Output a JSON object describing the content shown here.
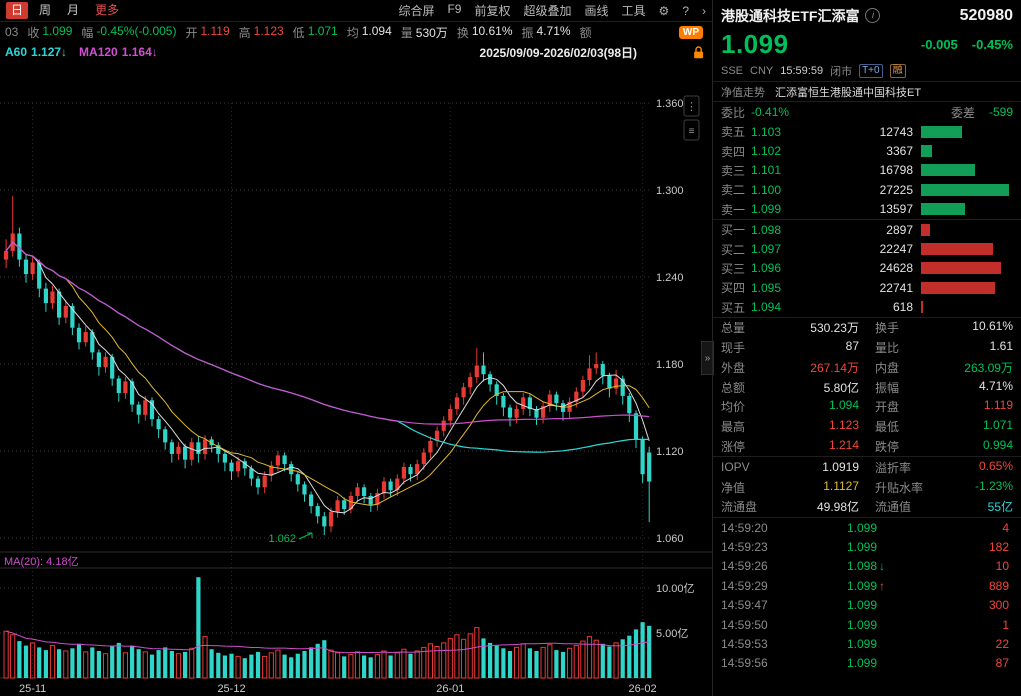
{
  "icons": {
    "gear": "⚙",
    "help": "?",
    "chevron": "›",
    "collapse": "»",
    "info": "i"
  },
  "toolbar": {
    "tabs": [
      {
        "label": "日",
        "active": true,
        "accent": false
      },
      {
        "label": "周",
        "active": false,
        "accent": false
      },
      {
        "label": "月",
        "active": false,
        "accent": false
      },
      {
        "label": "更多",
        "active": false,
        "accent": true
      }
    ],
    "menu_items": [
      "综合屏",
      "F9",
      "前复权",
      "超级叠加",
      "画线",
      "工具"
    ]
  },
  "info_bar": {
    "prefix": "03",
    "fields": [
      {
        "label": "收",
        "value": "1.099",
        "color": "green"
      },
      {
        "label": "幅",
        "value": "-0.45%(-0.005)",
        "color": "green"
      },
      {
        "label": "开",
        "value": "1.119",
        "color": "red"
      },
      {
        "label": "高",
        "value": "1.123",
        "color": "red"
      },
      {
        "label": "低",
        "value": "1.071",
        "color": "green"
      },
      {
        "label": "均",
        "value": "1.094",
        "color": "white"
      },
      {
        "label": "量",
        "value": "530万",
        "color": "white"
      },
      {
        "label": "换",
        "value": "10.61%",
        "color": "white"
      },
      {
        "label": "振",
        "value": "4.71%",
        "color": "white"
      },
      {
        "label": "额",
        "value": "",
        "color": "white"
      }
    ],
    "wp_badge": "WP"
  },
  "ma_bar": {
    "ma60_label": "A60",
    "ma60_value": "1.127↓",
    "ma120_label": "MA120",
    "ma120_value": "1.164↓",
    "date_range": "2025/09/09-2026/02/03(98日)"
  },
  "chart": {
    "y_labels": [
      "1.360",
      "1.300",
      "1.240",
      "1.180",
      "1.120",
      "1.060"
    ],
    "y_values": [
      1.36,
      1.3,
      1.24,
      1.18,
      1.12,
      1.06
    ],
    "low_annotation": "1.062",
    "vol_ma_label": "MA(20): 4.18亿",
    "vol_labels": [
      {
        "text": "10.00亿",
        "value": 10
      },
      {
        "text": "5.00亿",
        "value": 5
      }
    ],
    "x_labels": [
      {
        "text": "25-11",
        "index": 4
      },
      {
        "text": "25-12",
        "index": 34
      },
      {
        "text": "26-01",
        "index": 67
      },
      {
        "text": "26-02",
        "index": 96
      }
    ]
  },
  "chart_data": {
    "type": "candlestick",
    "title": "港股通科技ETF汇添富 520980 日K",
    "note": "each candle: [open, high, low, close, volume_yi]",
    "price_axis_range": [
      1.06,
      1.36
    ],
    "volume_axis_range": [
      0,
      10
    ],
    "lowest_marked_price": 1.062,
    "candles": [
      [
        1.252,
        1.266,
        1.246,
        1.258,
        5.2
      ],
      [
        1.258,
        1.296,
        1.254,
        1.27,
        4.8
      ],
      [
        1.27,
        1.274,
        1.247,
        1.252,
        4.1
      ],
      [
        1.252,
        1.256,
        1.236,
        1.242,
        3.6
      ],
      [
        1.242,
        1.254,
        1.238,
        1.25,
        3.9
      ],
      [
        1.25,
        1.252,
        1.226,
        1.232,
        3.4
      ],
      [
        1.232,
        1.236,
        1.216,
        1.222,
        3.1
      ],
      [
        1.222,
        1.234,
        1.218,
        1.23,
        3.6
      ],
      [
        1.23,
        1.232,
        1.207,
        1.212,
        3.2
      ],
      [
        1.212,
        1.224,
        1.208,
        1.22,
        3.0
      ],
      [
        1.22,
        1.222,
        1.2,
        1.205,
        3.3
      ],
      [
        1.205,
        1.208,
        1.19,
        1.195,
        3.8
      ],
      [
        1.195,
        1.206,
        1.192,
        1.202,
        2.9
      ],
      [
        1.202,
        1.204,
        1.183,
        1.188,
        3.4
      ],
      [
        1.188,
        1.19,
        1.172,
        1.178,
        3.0
      ],
      [
        1.178,
        1.188,
        1.174,
        1.185,
        2.7
      ],
      [
        1.185,
        1.187,
        1.165,
        1.17,
        3.5
      ],
      [
        1.17,
        1.172,
        1.154,
        1.16,
        3.9
      ],
      [
        1.16,
        1.171,
        1.156,
        1.168,
        2.8
      ],
      [
        1.168,
        1.17,
        1.147,
        1.152,
        3.6
      ],
      [
        1.152,
        1.154,
        1.139,
        1.145,
        3.2
      ],
      [
        1.145,
        1.158,
        1.141,
        1.155,
        2.9
      ],
      [
        1.155,
        1.157,
        1.137,
        1.142,
        2.6
      ],
      [
        1.142,
        1.144,
        1.129,
        1.135,
        3.1
      ],
      [
        1.135,
        1.137,
        1.121,
        1.126,
        3.4
      ],
      [
        1.126,
        1.128,
        1.112,
        1.118,
        3.0
      ],
      [
        1.118,
        1.126,
        1.114,
        1.123,
        2.7
      ],
      [
        1.123,
        1.125,
        1.108,
        1.114,
        2.9
      ],
      [
        1.114,
        1.129,
        1.11,
        1.126,
        3.3
      ],
      [
        1.126,
        1.13,
        1.112,
        1.118,
        11.2
      ],
      [
        1.118,
        1.131,
        1.114,
        1.128,
        4.6
      ],
      [
        1.128,
        1.13,
        1.119,
        1.124,
        3.2
      ],
      [
        1.124,
        1.126,
        1.112,
        1.118,
        2.8
      ],
      [
        1.118,
        1.12,
        1.106,
        1.112,
        2.5
      ],
      [
        1.112,
        1.114,
        1.1,
        1.106,
        2.7
      ],
      [
        1.106,
        1.116,
        1.102,
        1.113,
        2.4
      ],
      [
        1.113,
        1.115,
        1.103,
        1.108,
        2.2
      ],
      [
        1.108,
        1.11,
        1.096,
        1.101,
        2.6
      ],
      [
        1.101,
        1.103,
        1.09,
        1.095,
        2.9
      ],
      [
        1.095,
        1.106,
        1.091,
        1.103,
        2.4
      ],
      [
        1.103,
        1.113,
        1.099,
        1.11,
        2.8
      ],
      [
        1.11,
        1.12,
        1.106,
        1.117,
        3.1
      ],
      [
        1.117,
        1.119,
        1.106,
        1.111,
        2.6
      ],
      [
        1.111,
        1.113,
        1.099,
        1.104,
        2.3
      ],
      [
        1.104,
        1.106,
        1.092,
        1.097,
        2.7
      ],
      [
        1.097,
        1.099,
        1.085,
        1.09,
        3.0
      ],
      [
        1.09,
        1.092,
        1.077,
        1.082,
        3.4
      ],
      [
        1.082,
        1.084,
        1.07,
        1.075,
        3.8
      ],
      [
        1.075,
        1.078,
        1.062,
        1.068,
        4.2
      ],
      [
        1.068,
        1.081,
        1.064,
        1.078,
        3.1
      ],
      [
        1.078,
        1.089,
        1.074,
        1.086,
        2.8
      ],
      [
        1.086,
        1.088,
        1.076,
        1.08,
        2.4
      ],
      [
        1.08,
        1.092,
        1.077,
        1.089,
        2.6
      ],
      [
        1.089,
        1.098,
        1.085,
        1.095,
        2.9
      ],
      [
        1.095,
        1.097,
        1.084,
        1.089,
        2.5
      ],
      [
        1.089,
        1.091,
        1.078,
        1.083,
        2.3
      ],
      [
        1.083,
        1.094,
        1.079,
        1.091,
        2.6
      ],
      [
        1.091,
        1.102,
        1.087,
        1.099,
        3.0
      ],
      [
        1.099,
        1.101,
        1.088,
        1.093,
        2.5
      ],
      [
        1.093,
        1.104,
        1.089,
        1.101,
        2.8
      ],
      [
        1.101,
        1.112,
        1.097,
        1.109,
        3.2
      ],
      [
        1.109,
        1.111,
        1.099,
        1.104,
        2.7
      ],
      [
        1.104,
        1.114,
        1.1,
        1.111,
        3.0
      ],
      [
        1.111,
        1.122,
        1.107,
        1.119,
        3.4
      ],
      [
        1.119,
        1.13,
        1.115,
        1.127,
        3.8
      ],
      [
        1.127,
        1.137,
        1.123,
        1.134,
        3.5
      ],
      [
        1.134,
        1.144,
        1.13,
        1.141,
        3.9
      ],
      [
        1.141,
        1.152,
        1.137,
        1.149,
        4.4
      ],
      [
        1.149,
        1.16,
        1.145,
        1.157,
        4.8
      ],
      [
        1.157,
        1.167,
        1.152,
        1.164,
        4.3
      ],
      [
        1.164,
        1.174,
        1.159,
        1.171,
        4.9
      ],
      [
        1.171,
        1.191,
        1.167,
        1.179,
        5.6
      ],
      [
        1.179,
        1.188,
        1.168,
        1.173,
        4.4
      ],
      [
        1.173,
        1.175,
        1.161,
        1.166,
        3.9
      ],
      [
        1.166,
        1.168,
        1.152,
        1.158,
        3.6
      ],
      [
        1.158,
        1.16,
        1.144,
        1.15,
        3.3
      ],
      [
        1.15,
        1.152,
        1.137,
        1.143,
        3.0
      ],
      [
        1.143,
        1.152,
        1.139,
        1.149,
        3.4
      ],
      [
        1.149,
        1.16,
        1.145,
        1.157,
        3.8
      ],
      [
        1.157,
        1.159,
        1.144,
        1.149,
        3.3
      ],
      [
        1.149,
        1.151,
        1.138,
        1.143,
        3.0
      ],
      [
        1.143,
        1.154,
        1.139,
        1.151,
        3.4
      ],
      [
        1.151,
        1.162,
        1.147,
        1.159,
        3.7
      ],
      [
        1.159,
        1.161,
        1.148,
        1.153,
        3.1
      ],
      [
        1.153,
        1.155,
        1.141,
        1.147,
        2.9
      ],
      [
        1.147,
        1.157,
        1.143,
        1.154,
        3.3
      ],
      [
        1.154,
        1.164,
        1.15,
        1.161,
        3.6
      ],
      [
        1.161,
        1.172,
        1.157,
        1.169,
        4.1
      ],
      [
        1.169,
        1.186,
        1.165,
        1.177,
        4.6
      ],
      [
        1.177,
        1.188,
        1.173,
        1.18,
        4.2
      ],
      [
        1.18,
        1.182,
        1.166,
        1.172,
        3.8
      ],
      [
        1.172,
        1.174,
        1.157,
        1.163,
        3.5
      ],
      [
        1.163,
        1.176,
        1.159,
        1.17,
        3.9
      ],
      [
        1.17,
        1.172,
        1.152,
        1.158,
        4.3
      ],
      [
        1.158,
        1.16,
        1.14,
        1.146,
        4.7
      ],
      [
        1.146,
        1.148,
        1.122,
        1.128,
        5.4
      ],
      [
        1.128,
        1.13,
        1.098,
        1.104,
        6.2
      ],
      [
        1.119,
        1.123,
        1.071,
        1.099,
        5.8
      ]
    ]
  },
  "quote": {
    "name": "港股通科技ETF汇添富",
    "code": "520980",
    "price": "1.099",
    "change": "-0.005",
    "change_pct": "-0.45%",
    "exchange": "SSE",
    "currency": "CNY",
    "time": "15:59:59",
    "market_status": "闭市",
    "badges": [
      "T+0",
      "融"
    ],
    "nav_label": "净值走势",
    "nav_value": "汇添富恒生港股通中国科技ET",
    "weibi_label": "委比",
    "weibi": "-0.41%",
    "weicha_label": "委差",
    "weicha": "-599",
    "sells": [
      {
        "label": "卖五",
        "price": "1.103",
        "vol": 12743
      },
      {
        "label": "卖四",
        "price": "1.102",
        "vol": 3367
      },
      {
        "label": "卖三",
        "price": "1.101",
        "vol": 16798
      },
      {
        "label": "卖二",
        "price": "1.100",
        "vol": 27225
      },
      {
        "label": "卖一",
        "price": "1.099",
        "vol": 13597
      }
    ],
    "buys": [
      {
        "label": "买一",
        "price": "1.098",
        "vol": 2897
      },
      {
        "label": "买二",
        "price": "1.097",
        "vol": 22247
      },
      {
        "label": "买三",
        "price": "1.096",
        "vol": 24628
      },
      {
        "label": "买四",
        "price": "1.095",
        "vol": 22741
      },
      {
        "label": "买五",
        "price": "1.094",
        "vol": 618
      }
    ],
    "stats": [
      [
        {
          "label": "总量",
          "value": "530.23万",
          "color": "white"
        },
        {
          "label": "换手",
          "value": "10.61%",
          "color": "white"
        }
      ],
      [
        {
          "label": "现手",
          "value": "87",
          "color": "white"
        },
        {
          "label": "量比",
          "value": "1.61",
          "color": "white"
        }
      ],
      [
        {
          "label": "外盘",
          "value": "267.14万",
          "color": "red"
        },
        {
          "label": "内盘",
          "value": "263.09万",
          "color": "green"
        }
      ],
      [
        {
          "label": "总额",
          "value": "5.80亿",
          "color": "white"
        },
        {
          "label": "振幅",
          "value": "4.71%",
          "color": "white"
        }
      ],
      [
        {
          "label": "均价",
          "value": "1.094",
          "color": "green"
        },
        {
          "label": "开盘",
          "value": "1.119",
          "color": "red"
        }
      ],
      [
        {
          "label": "最高",
          "value": "1.123",
          "color": "red"
        },
        {
          "label": "最低",
          "value": "1.071",
          "color": "green"
        }
      ],
      [
        {
          "label": "涨停",
          "value": "1.214",
          "color": "red"
        },
        {
          "label": "跌停",
          "value": "0.994",
          "color": "green"
        }
      ]
    ],
    "iopv_stats": [
      [
        {
          "label": "IOPV",
          "value": "1.0919",
          "color": "white"
        },
        {
          "label": "溢折率",
          "value": "0.65%",
          "color": "red"
        }
      ],
      [
        {
          "label": "净值",
          "value": "1.1127",
          "color": "yellow"
        },
        {
          "label": "升贴水率",
          "value": "-1.23%",
          "color": "green"
        }
      ],
      [
        {
          "label": "流通盘",
          "value": "49.98亿",
          "color": "white"
        },
        {
          "label": "流通值",
          "value": "55亿",
          "color": "cyan"
        }
      ]
    ],
    "ticks": [
      {
        "time": "14:59:20",
        "price": "1.099",
        "dir": "",
        "vol": "4",
        "vol_color": "red"
      },
      {
        "time": "14:59:23",
        "price": "1.099",
        "dir": "",
        "vol": "182",
        "vol_color": "red"
      },
      {
        "time": "14:59:26",
        "price": "1.098",
        "dir": "down",
        "vol": "10",
        "vol_color": "red"
      },
      {
        "time": "14:59:29",
        "price": "1.099",
        "dir": "up",
        "vol": "889",
        "vol_color": "red"
      },
      {
        "time": "14:59:47",
        "price": "1.099",
        "dir": "",
        "vol": "300",
        "vol_color": "red"
      },
      {
        "time": "14:59:50",
        "price": "1.099",
        "dir": "",
        "vol": "1",
        "vol_color": "red"
      },
      {
        "time": "14:59:53",
        "price": "1.099",
        "dir": "",
        "vol": "22",
        "vol_color": "red"
      },
      {
        "time": "14:59:56",
        "price": "1.099",
        "dir": "",
        "vol": "87",
        "vol_color": "red"
      }
    ]
  }
}
